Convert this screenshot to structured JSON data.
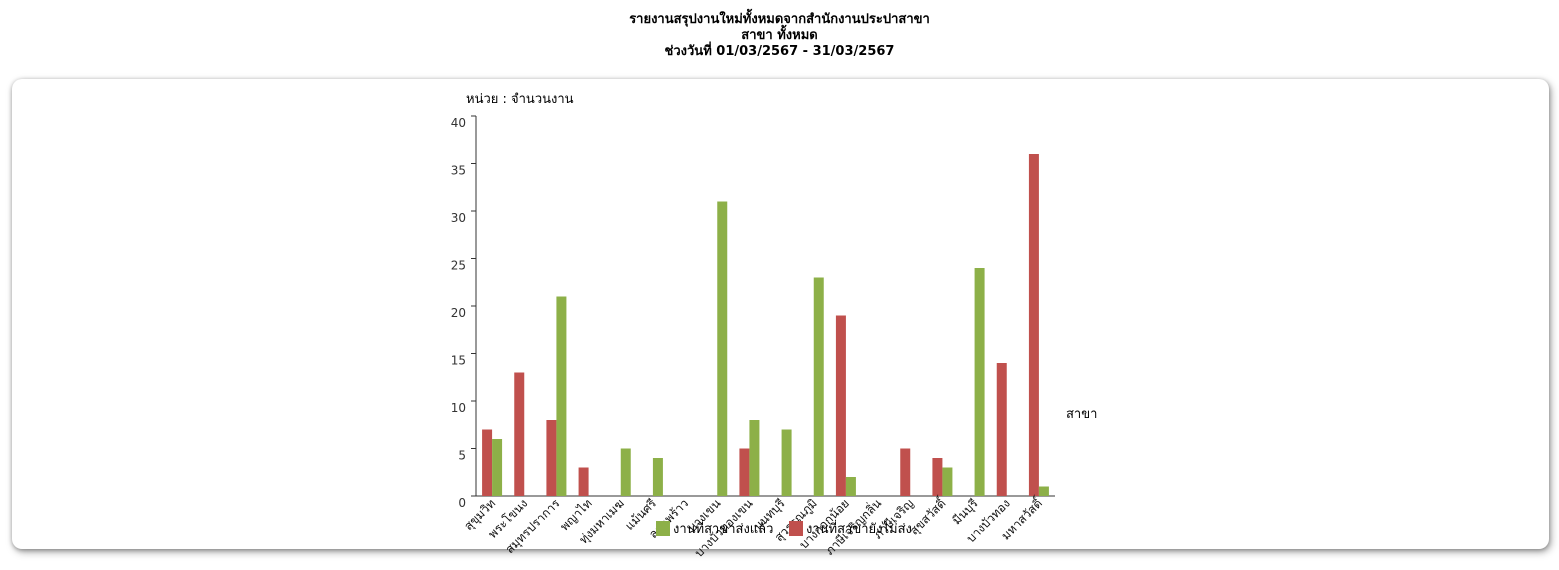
{
  "header": {
    "line1": "รายงานสรุปงานใหม่ทั้งหมดจากสำนักงานประปาสาขา",
    "line2": "สาขา ทั้งหมด",
    "line3": "ช่วงวันที่ 01/03/2567 - 31/03/2567"
  },
  "chart_data": {
    "type": "bar",
    "ylabel": "หน่วย : จำนวนงาน",
    "xlabel": "สาขา",
    "ylim": [
      0,
      40
    ],
    "yticks": [
      0,
      5,
      10,
      15,
      20,
      25,
      30,
      35,
      40
    ],
    "grid": false,
    "legend_position": "bottom",
    "categories": [
      "สุขุมวิท",
      "พระโขนง",
      "สมุทรปราการ",
      "พญาไท",
      "ทุ่งมหาเมฆ",
      "แม้นศรี",
      "ลาดพร้าว",
      "บางเขน",
      "บางบัวทองเขน",
      "นนทบุรี",
      "สุวรรณภูมิ",
      "บางกอกน้อย",
      "ภาษีเจริญกลิ่น",
      "ภาษีเจริญ",
      "สุขสวัสดิ์",
      "มีนบุรี",
      "บางบัวทอง",
      "มหาสวัสดิ์"
    ],
    "series": [
      {
        "name": "งานที่สาขายังไม่ส่ง",
        "color": "#c0504d",
        "values": [
          7,
          13,
          8,
          3,
          0,
          0,
          0,
          0,
          5,
          0,
          0,
          19,
          0,
          5,
          4,
          0,
          14,
          36
        ]
      },
      {
        "name": "งานที่สาขาส่งแล้ว",
        "color": "#8db048",
        "values": [
          6,
          0,
          21,
          0,
          5,
          4,
          0,
          31,
          8,
          7,
          23,
          2,
          0,
          0,
          3,
          24,
          0,
          1
        ]
      }
    ]
  }
}
